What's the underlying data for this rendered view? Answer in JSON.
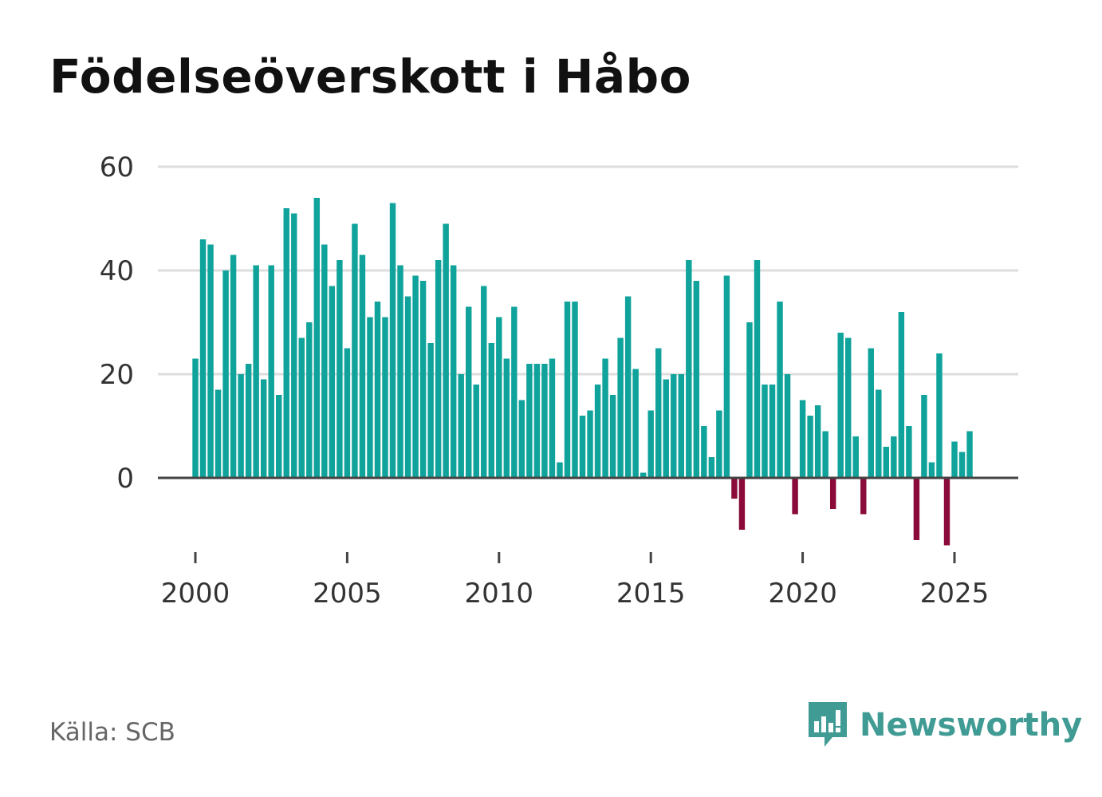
{
  "title": "Födelseöverskott i Håbo",
  "source": "Källa: SCB",
  "brand": "Newsworthy",
  "colors": {
    "positive": "#0fa39b",
    "negative": "#8a0a3a",
    "grid": "#dddddd",
    "axis": "#444444",
    "brand": "#3f9b93"
  },
  "chart_data": {
    "type": "bar",
    "title": "Födelseöverskott i Håbo",
    "xlabel": "",
    "ylabel": "",
    "ylim": [
      -15,
      60
    ],
    "yticks": [
      0,
      20,
      40,
      60
    ],
    "xticks": [
      2000,
      2005,
      2010,
      2015,
      2020,
      2025
    ],
    "xlim": [
      1999.25,
      2027.55
    ],
    "frequency": "quarterly",
    "start": 2000.0,
    "values": [
      23,
      46,
      45,
      17,
      40,
      43,
      20,
      22,
      41,
      19,
      41,
      16,
      52,
      51,
      27,
      30,
      54,
      45,
      37,
      42,
      25,
      49,
      43,
      31,
      34,
      31,
      53,
      41,
      35,
      39,
      38,
      26,
      42,
      49,
      41,
      20,
      33,
      18,
      37,
      26,
      31,
      23,
      33,
      15,
      22,
      22,
      22,
      23,
      3,
      34,
      34,
      12,
      13,
      18,
      23,
      16,
      27,
      35,
      21,
      1,
      13,
      25,
      19,
      20,
      20,
      42,
      38,
      10,
      4,
      13,
      39,
      -4,
      -10,
      30,
      42,
      18,
      18,
      34,
      20,
      -7,
      15,
      12,
      14,
      9,
      -6,
      28,
      27,
      8,
      -7,
      25,
      17,
      6,
      8,
      32,
      10,
      -12,
      16,
      3,
      24,
      -13,
      7,
      5,
      9
    ]
  }
}
